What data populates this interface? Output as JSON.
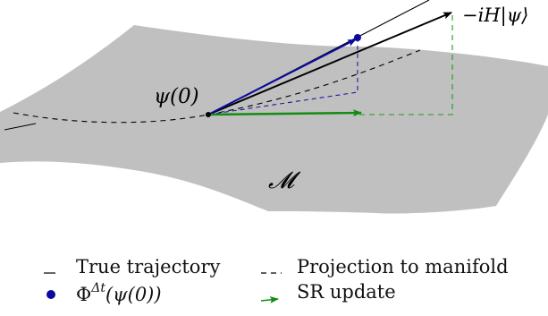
{
  "diagram": {
    "manifold_label": "𝓜",
    "state_label": "ψ(0)",
    "hamiltonian_label": "−iH|ψ⟩",
    "colors": {
      "manifold": "#c0c0c0",
      "true_trajectory": "#000000",
      "projection": "#000000",
      "phi_point": "#0a0aa0",
      "sr_update": "#128c12",
      "blue_dashed": "#1a1aa6",
      "green_dashed": "#18a018"
    }
  },
  "legend": {
    "items": [
      {
        "key": "true_trajectory",
        "label": "True trajectory",
        "marker": "solid-line"
      },
      {
        "key": "projection",
        "label": "Projection to manifold",
        "marker": "dashed-line"
      },
      {
        "key": "phi",
        "label": "Φ",
        "superscript": "Δt",
        "suffix": "(ψ(0))",
        "marker": "dot"
      },
      {
        "key": "sr_update",
        "label": "SR update",
        "marker": "green-arrow"
      }
    ]
  }
}
